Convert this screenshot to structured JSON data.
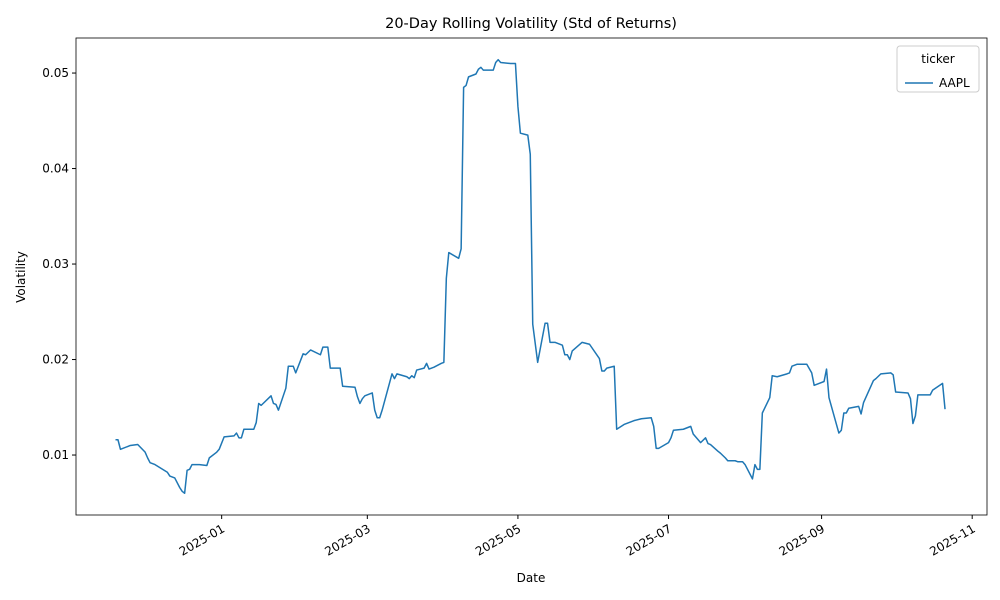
{
  "chart_data": {
    "type": "line",
    "title": "20-Day Rolling Volatility (Std of Returns)",
    "xlabel": "Date",
    "ylabel": "Volatility",
    "legend_title": "ticker",
    "legend": "upper right",
    "x": [
      "2024-11-19",
      "2024-11-20",
      "2024-11-21",
      "2024-11-25",
      "2024-11-28",
      "2024-12-01",
      "2024-12-02",
      "2024-12-03",
      "2024-12-05",
      "2024-12-10",
      "2024-12-11",
      "2024-12-13",
      "2024-12-15",
      "2024-12-16",
      "2024-12-17",
      "2024-12-18",
      "2024-12-19",
      "2024-12-20",
      "2024-12-23",
      "2024-12-26",
      "2024-12-27",
      "2024-12-30",
      "2024-12-31",
      "2025-01-02",
      "2025-01-06",
      "2025-01-07",
      "2025-01-08",
      "2025-01-09",
      "2025-01-10",
      "2025-01-14",
      "2025-01-15",
      "2025-01-16",
      "2025-01-17",
      "2025-01-21",
      "2025-01-22",
      "2025-01-23",
      "2025-01-24",
      "2025-01-27",
      "2025-01-28",
      "2025-01-30",
      "2025-01-31",
      "2025-02-03",
      "2025-02-04",
      "2025-02-06",
      "2025-02-10",
      "2025-02-11",
      "2025-02-13",
      "2025-02-14",
      "2025-02-18",
      "2025-02-19",
      "2025-02-24",
      "2025-02-25",
      "2025-02-26",
      "2025-02-27",
      "2025-02-28",
      "2025-03-03",
      "2025-03-04",
      "2025-03-05",
      "2025-03-06",
      "2025-03-07",
      "2025-03-11",
      "2025-03-12",
      "2025-03-13",
      "2025-03-17",
      "2025-03-18",
      "2025-03-19",
      "2025-03-20",
      "2025-03-21",
      "2025-03-24",
      "2025-03-25",
      "2025-03-26",
      "2025-03-28",
      "2025-03-31",
      "2025-04-01",
      "2025-04-02",
      "2025-04-03",
      "2025-04-07",
      "2025-04-08",
      "2025-04-09",
      "2025-04-10",
      "2025-04-11",
      "2025-04-14",
      "2025-04-15",
      "2025-04-16",
      "2025-04-17",
      "2025-04-21",
      "2025-04-22",
      "2025-04-23",
      "2025-04-24",
      "2025-04-28",
      "2025-04-30",
      "2025-05-01",
      "2025-05-02",
      "2025-05-05",
      "2025-05-06",
      "2025-05-07",
      "2025-05-09",
      "2025-05-12",
      "2025-05-13",
      "2025-05-14",
      "2025-05-16",
      "2025-05-19",
      "2025-05-20",
      "2025-05-21",
      "2025-05-22",
      "2025-05-23",
      "2025-05-27",
      "2025-05-30",
      "2025-06-03",
      "2025-06-04",
      "2025-06-05",
      "2025-06-06",
      "2025-06-09",
      "2025-06-10",
      "2025-06-13",
      "2025-06-17",
      "2025-06-20",
      "2025-06-24",
      "2025-06-25",
      "2025-06-26",
      "2025-06-27",
      "2025-07-01",
      "2025-07-02",
      "2025-07-03",
      "2025-07-07",
      "2025-07-10",
      "2025-07-11",
      "2025-07-14",
      "2025-07-16",
      "2025-07-17",
      "2025-07-18",
      "2025-07-21",
      "2025-07-22",
      "2025-07-24",
      "2025-07-25",
      "2025-07-28",
      "2025-07-29",
      "2025-07-31",
      "2025-08-01",
      "2025-08-04",
      "2025-08-05",
      "2025-08-06",
      "2025-08-07",
      "2025-08-08",
      "2025-08-11",
      "2025-08-12",
      "2025-08-14",
      "2025-08-18",
      "2025-08-19",
      "2025-08-20",
      "2025-08-22",
      "2025-08-26",
      "2025-08-28",
      "2025-08-29",
      "2025-09-02",
      "2025-09-03",
      "2025-09-04",
      "2025-09-08",
      "2025-09-09",
      "2025-09-10",
      "2025-09-11",
      "2025-09-12",
      "2025-09-16",
      "2025-09-17",
      "2025-09-18",
      "2025-09-22",
      "2025-09-23",
      "2025-09-25",
      "2025-09-29",
      "2025-09-30",
      "2025-10-01",
      "2025-10-06",
      "2025-10-07",
      "2025-10-08",
      "2025-10-09",
      "2025-10-10",
      "2025-10-15",
      "2025-10-16",
      "2025-10-20",
      "2025-10-21"
    ],
    "series": [
      {
        "name": "AAPL",
        "color": "#1f77b4",
        "values": [
          0.0116,
          0.0116,
          0.0106,
          0.011,
          0.0111,
          0.0103,
          0.0097,
          0.0092,
          0.009,
          0.0082,
          0.0078,
          0.0076,
          0.0066,
          0.0062,
          0.006,
          0.0084,
          0.0085,
          0.009,
          0.009,
          0.0089,
          0.0097,
          0.0103,
          0.0106,
          0.0119,
          0.012,
          0.0123,
          0.0118,
          0.0118,
          0.0127,
          0.0127,
          0.0134,
          0.0154,
          0.0152,
          0.0162,
          0.0154,
          0.0153,
          0.0147,
          0.017,
          0.0193,
          0.0193,
          0.0186,
          0.0206,
          0.0205,
          0.021,
          0.0205,
          0.0213,
          0.0213,
          0.0191,
          0.0191,
          0.0172,
          0.0171,
          0.0161,
          0.0154,
          0.0159,
          0.0162,
          0.0165,
          0.0147,
          0.0139,
          0.0139,
          0.0147,
          0.0185,
          0.018,
          0.0185,
          0.0182,
          0.018,
          0.0183,
          0.0181,
          0.0189,
          0.0191,
          0.0196,
          0.019,
          0.0192,
          0.0196,
          0.0197,
          0.0285,
          0.0312,
          0.0306,
          0.0316,
          0.0485,
          0.0487,
          0.0496,
          0.0499,
          0.0504,
          0.0506,
          0.0503,
          0.0503,
          0.0511,
          0.0514,
          0.0511,
          0.051,
          0.051,
          0.0465,
          0.0437,
          0.0435,
          0.0415,
          0.0237,
          0.0197,
          0.0238,
          0.0238,
          0.0218,
          0.0218,
          0.0215,
          0.0205,
          0.0205,
          0.02,
          0.0209,
          0.0218,
          0.0216,
          0.0201,
          0.0188,
          0.0188,
          0.0191,
          0.0193,
          0.0127,
          0.0132,
          0.0136,
          0.0138,
          0.0139,
          0.013,
          0.0107,
          0.0107,
          0.0113,
          0.0118,
          0.0126,
          0.0127,
          0.013,
          0.0122,
          0.0113,
          0.0118,
          0.0112,
          0.0111,
          0.0104,
          0.0102,
          0.0097,
          0.0094,
          0.0094,
          0.0093,
          0.0093,
          0.009,
          0.0075,
          0.009,
          0.0085,
          0.0085,
          0.0144,
          0.016,
          0.0183,
          0.0182,
          0.0185,
          0.0186,
          0.0193,
          0.0195,
          0.0195,
          0.0186,
          0.0173,
          0.0177,
          0.019,
          0.016,
          0.0123,
          0.0126,
          0.0144,
          0.0144,
          0.0149,
          0.0151,
          0.0143,
          0.0155,
          0.0178,
          0.018,
          0.0185,
          0.0186,
          0.0184,
          0.0166,
          0.0165,
          0.0159,
          0.0133,
          0.0141,
          0.0163,
          0.0163,
          0.0168,
          0.0175,
          0.0148
        ]
      }
    ],
    "xlim": [
      "2024-11-03",
      "2025-11-07"
    ],
    "xticks": [
      {
        "value": "2025-01-01",
        "label": "2025-01"
      },
      {
        "value": "2025-03-01",
        "label": "2025-03"
      },
      {
        "value": "2025-05-01",
        "label": "2025-05"
      },
      {
        "value": "2025-07-01",
        "label": "2025-07"
      },
      {
        "value": "2025-09-01",
        "label": "2025-09"
      },
      {
        "value": "2025-11-01",
        "label": "2025-11"
      }
    ],
    "ylim": [
      0.00372,
      0.05367
    ],
    "yticks": [
      0.01,
      0.02,
      0.03,
      0.04,
      0.05
    ]
  }
}
